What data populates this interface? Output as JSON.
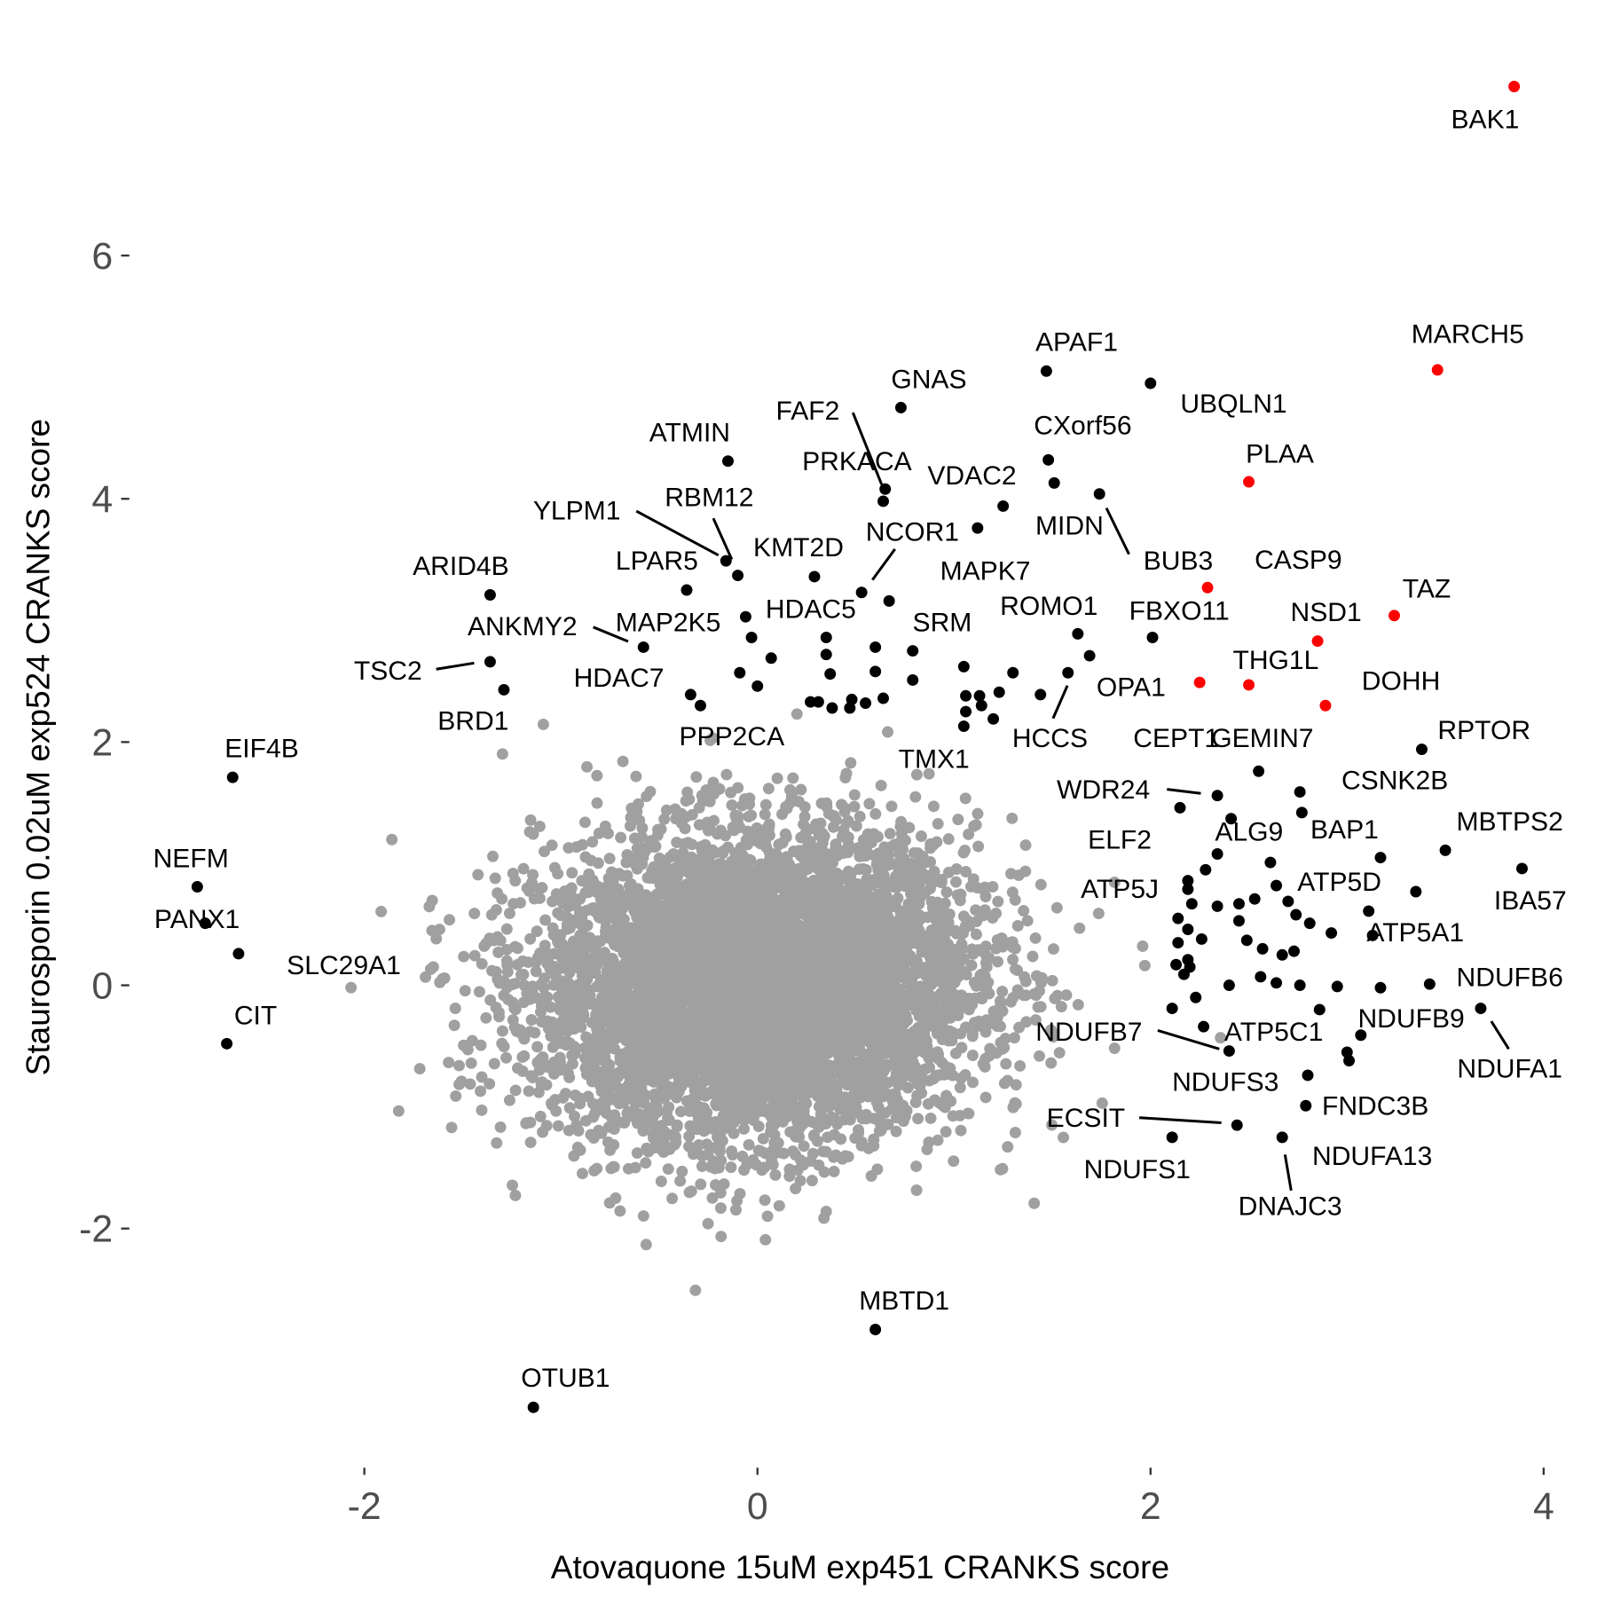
{
  "chart_data": {
    "type": "scatter",
    "title": "",
    "xlabel": "Atovaquone 15uM exp451 CRANKS score",
    "ylabel": "Staurosporin 0.02uM exp524 CRANKS score",
    "xlim": [
      -2.95,
      4.1
    ],
    "ylim": [
      -3.65,
      7.6
    ],
    "x_ticks": [
      -2,
      0,
      2,
      4
    ],
    "y_ticks": [
      -2,
      0,
      2,
      4,
      6
    ],
    "grid": false,
    "legend": "none",
    "colors": {
      "background": "#a0a0a0",
      "highlight": "#000000",
      "top": "#ff0000",
      "tick": "#4d4d4d"
    },
    "background": {
      "description_n_points": 6500,
      "mean": [
        0,
        0
      ],
      "sd_x": 0.55,
      "sd_y": 0.62,
      "correlation": 0.05
    },
    "labeled_points": [
      {
        "label": "BAK1",
        "x": 3.85,
        "y": 7.39,
        "group": "top"
      },
      {
        "label": "MARCH5",
        "x": 3.46,
        "y": 5.06,
        "group": "top"
      },
      {
        "label": "PLAA",
        "x": 2.5,
        "y": 4.14,
        "group": "top"
      },
      {
        "label": "CASP9",
        "x": 2.29,
        "y": 3.27,
        "group": "top"
      },
      {
        "label": "TAZ",
        "x": 3.24,
        "y": 3.04,
        "group": "top"
      },
      {
        "label": "NSD1",
        "x": 2.85,
        "y": 2.83,
        "group": "top"
      },
      {
        "label": "THG1L",
        "x": 2.5,
        "y": 2.47,
        "group": "top"
      },
      {
        "label": "CEPT1",
        "x": 2.25,
        "y": 2.49,
        "group": "top"
      },
      {
        "label": "DOHH",
        "x": 2.89,
        "y": 2.3,
        "group": "top"
      },
      {
        "label": "APAF1",
        "x": 1.47,
        "y": 5.05,
        "group": "hit"
      },
      {
        "label": "UBQLN1",
        "x": 2.0,
        "y": 4.95,
        "group": "hit"
      },
      {
        "label": "GNAS",
        "x": 0.73,
        "y": 4.75,
        "group": "hit"
      },
      {
        "label": "CXorf56",
        "x": 1.48,
        "y": 4.32,
        "group": "hit"
      },
      {
        "label": "ATMIN",
        "x": -0.15,
        "y": 4.31,
        "group": "hit"
      },
      {
        "label": "FAF2",
        "x": 0.64,
        "y": 3.98,
        "group": "hit"
      },
      {
        "label": "PRKACA",
        "x": 0.65,
        "y": 4.08,
        "group": "hit"
      },
      {
        "label": "VDAC2",
        "x": 1.25,
        "y": 3.94,
        "group": "hit"
      },
      {
        "label": "BUB3",
        "x": 1.74,
        "y": 4.04,
        "group": "hit"
      },
      {
        "label": "MIDN",
        "x": 1.51,
        "y": 4.13,
        "group": "hit"
      },
      {
        "label": "MAPK7",
        "x": 1.12,
        "y": 3.76,
        "group": "hit"
      },
      {
        "label": "YLPM1",
        "x": -0.16,
        "y": 3.49,
        "group": "hit"
      },
      {
        "label": "RBM12",
        "x": -0.1,
        "y": 3.37,
        "group": "hit"
      },
      {
        "label": "LPAR5",
        "x": -0.36,
        "y": 3.25,
        "group": "hit"
      },
      {
        "label": "KMT2D",
        "x": 0.29,
        "y": 3.36,
        "group": "hit"
      },
      {
        "label": "NCOR1",
        "x": 0.53,
        "y": 3.23,
        "group": "hit"
      },
      {
        "label": "ARID4B",
        "x": -1.36,
        "y": 3.21,
        "group": "hit"
      },
      {
        "label": "ANKMY2",
        "x": -0.58,
        "y": 2.78,
        "group": "hit"
      },
      {
        "label": "MAP2K5",
        "x": -0.06,
        "y": 3.03,
        "group": "hit"
      },
      {
        "label": "HDAC5",
        "x": 0.35,
        "y": 2.86,
        "group": "hit"
      },
      {
        "label": "SRM",
        "x": 0.79,
        "y": 2.75,
        "group": "hit"
      },
      {
        "label": "TSC2",
        "x": -1.36,
        "y": 2.66,
        "group": "hit"
      },
      {
        "label": "BRD1",
        "x": -1.29,
        "y": 2.43,
        "group": "hit"
      },
      {
        "label": "HDAC7",
        "x": -0.34,
        "y": 2.39,
        "group": "hit"
      },
      {
        "label": "PPP2CA",
        "x": -0.29,
        "y": 2.3,
        "group": "hit"
      },
      {
        "label": "ROMO1",
        "x": 1.63,
        "y": 2.89,
        "group": "hit"
      },
      {
        "label": "FBXO11",
        "x": 2.01,
        "y": 2.86,
        "group": "hit"
      },
      {
        "label": "OPA1",
        "x": 1.69,
        "y": 2.71,
        "group": "hit"
      },
      {
        "label": "HCCS",
        "x": 1.58,
        "y": 2.57,
        "group": "hit"
      },
      {
        "label": "TMX1",
        "x": 1.05,
        "y": 2.13,
        "group": "hit"
      },
      {
        "label": "RPTOR",
        "x": 3.38,
        "y": 1.94,
        "group": "hit"
      },
      {
        "label": "GEMIN7",
        "x": 2.55,
        "y": 1.76,
        "group": "hit"
      },
      {
        "label": "CSNK2B",
        "x": 2.76,
        "y": 1.59,
        "group": "hit"
      },
      {
        "label": "WDR24",
        "x": 2.34,
        "y": 1.56,
        "group": "hit"
      },
      {
        "label": "BAP1",
        "x": 2.77,
        "y": 1.42,
        "group": "hit"
      },
      {
        "label": "ALG9",
        "x": 2.41,
        "y": 1.37,
        "group": "hit"
      },
      {
        "label": "ELF2",
        "x": 2.15,
        "y": 1.46,
        "group": "hit"
      },
      {
        "label": "MBTPS2",
        "x": 3.5,
        "y": 1.11,
        "group": "hit"
      },
      {
        "label": "IBA57",
        "x": 3.89,
        "y": 0.96,
        "group": "hit"
      },
      {
        "label": "ATP5J",
        "x": 2.19,
        "y": 0.86,
        "group": "hit"
      },
      {
        "label": "ATP5D",
        "x": 2.64,
        "y": 0.82,
        "group": "hit"
      },
      {
        "label": "ATP5A1",
        "x": 3.13,
        "y": 0.41,
        "group": "hit"
      },
      {
        "label": "NDUFB6",
        "x": 3.42,
        "y": 0.01,
        "group": "hit"
      },
      {
        "label": "NDUFB9",
        "x": 3.07,
        "y": -0.41,
        "group": "hit"
      },
      {
        "label": "NDUFA1",
        "x": 3.68,
        "y": -0.19,
        "group": "hit"
      },
      {
        "label": "NDUFB7",
        "x": 2.4,
        "y": -0.54,
        "group": "hit"
      },
      {
        "label": "ATP5C1",
        "x": 2.86,
        "y": -0.2,
        "group": "hit"
      },
      {
        "label": "NDUFS3",
        "x": 2.8,
        "y": -0.74,
        "group": "hit"
      },
      {
        "label": "FNDC3B",
        "x": 2.79,
        "y": -0.99,
        "group": "hit"
      },
      {
        "label": "ECSIT",
        "x": 2.44,
        "y": -1.15,
        "group": "hit"
      },
      {
        "label": "NDUFS1",
        "x": 2.11,
        "y": -1.25,
        "group": "hit"
      },
      {
        "label": "NDUFA13",
        "x": 3.0,
        "y": -0.55,
        "group": "hit"
      },
      {
        "label": "DNAJC3",
        "x": 2.67,
        "y": -1.25,
        "group": "hit"
      },
      {
        "label": "MBTD1",
        "x": 0.6,
        "y": -2.83,
        "group": "hit"
      },
      {
        "label": "OTUB1",
        "x": -1.14,
        "y": -3.47,
        "group": "hit"
      },
      {
        "label": "EIF4B",
        "x": -2.67,
        "y": 1.71,
        "group": "hit"
      },
      {
        "label": "NEFM",
        "x": -2.85,
        "y": 0.81,
        "group": "hit"
      },
      {
        "label": "PANX1",
        "x": -2.81,
        "y": 0.51,
        "group": "hit"
      },
      {
        "label": "SLC29A1",
        "x": -2.64,
        "y": 0.26,
        "group": "hit"
      },
      {
        "label": "CIT",
        "x": -2.7,
        "y": -0.48,
        "group": "hit"
      }
    ],
    "unlabeled_hits": [
      [
        -0.03,
        2.86
      ],
      [
        0.07,
        2.69
      ],
      [
        -0.09,
        2.57
      ],
      [
        0.0,
        2.46
      ],
      [
        0.67,
        3.16
      ],
      [
        0.35,
        2.72
      ],
      [
        0.37,
        2.56
      ],
      [
        0.6,
        2.78
      ],
      [
        0.6,
        2.58
      ],
      [
        0.79,
        2.51
      ],
      [
        0.27,
        2.33
      ],
      [
        0.31,
        2.33
      ],
      [
        0.38,
        2.28
      ],
      [
        0.48,
        2.35
      ],
      [
        0.55,
        2.32
      ],
      [
        0.64,
        2.36
      ],
      [
        0.47,
        2.28
      ],
      [
        1.05,
        2.62
      ],
      [
        1.06,
        2.38
      ],
      [
        1.13,
        2.38
      ],
      [
        1.14,
        2.3
      ],
      [
        1.23,
        2.41
      ],
      [
        1.06,
        2.25
      ],
      [
        1.2,
        2.19
      ],
      [
        1.3,
        2.57
      ],
      [
        1.44,
        2.39
      ],
      [
        2.34,
        1.08
      ],
      [
        2.28,
        0.95
      ],
      [
        2.61,
        1.01
      ],
      [
        3.17,
        1.05
      ],
      [
        2.19,
        0.79
      ],
      [
        3.35,
        0.77
      ],
      [
        2.21,
        0.67
      ],
      [
        2.34,
        0.65
      ],
      [
        2.45,
        0.67
      ],
      [
        2.53,
        0.71
      ],
      [
        2.7,
        0.69
      ],
      [
        3.11,
        0.61
      ],
      [
        2.45,
        0.53
      ],
      [
        2.74,
        0.58
      ],
      [
        2.81,
        0.51
      ],
      [
        2.92,
        0.43
      ],
      [
        2.14,
        0.55
      ],
      [
        2.19,
        0.46
      ],
      [
        2.26,
        0.38
      ],
      [
        2.49,
        0.37
      ],
      [
        2.57,
        0.3
      ],
      [
        2.67,
        0.25
      ],
      [
        2.73,
        0.28
      ],
      [
        2.14,
        0.35
      ],
      [
        2.19,
        0.21
      ],
      [
        2.13,
        0.17
      ],
      [
        2.2,
        0.15
      ],
      [
        2.17,
        0.09
      ],
      [
        2.4,
        0.0
      ],
      [
        2.56,
        0.07
      ],
      [
        2.64,
        0.02
      ],
      [
        2.76,
        0.0
      ],
      [
        2.95,
        -0.01
      ],
      [
        3.17,
        -0.02
      ],
      [
        2.23,
        -0.1
      ],
      [
        2.11,
        -0.19
      ],
      [
        2.27,
        -0.34
      ],
      [
        3.01,
        -0.62
      ]
    ]
  }
}
